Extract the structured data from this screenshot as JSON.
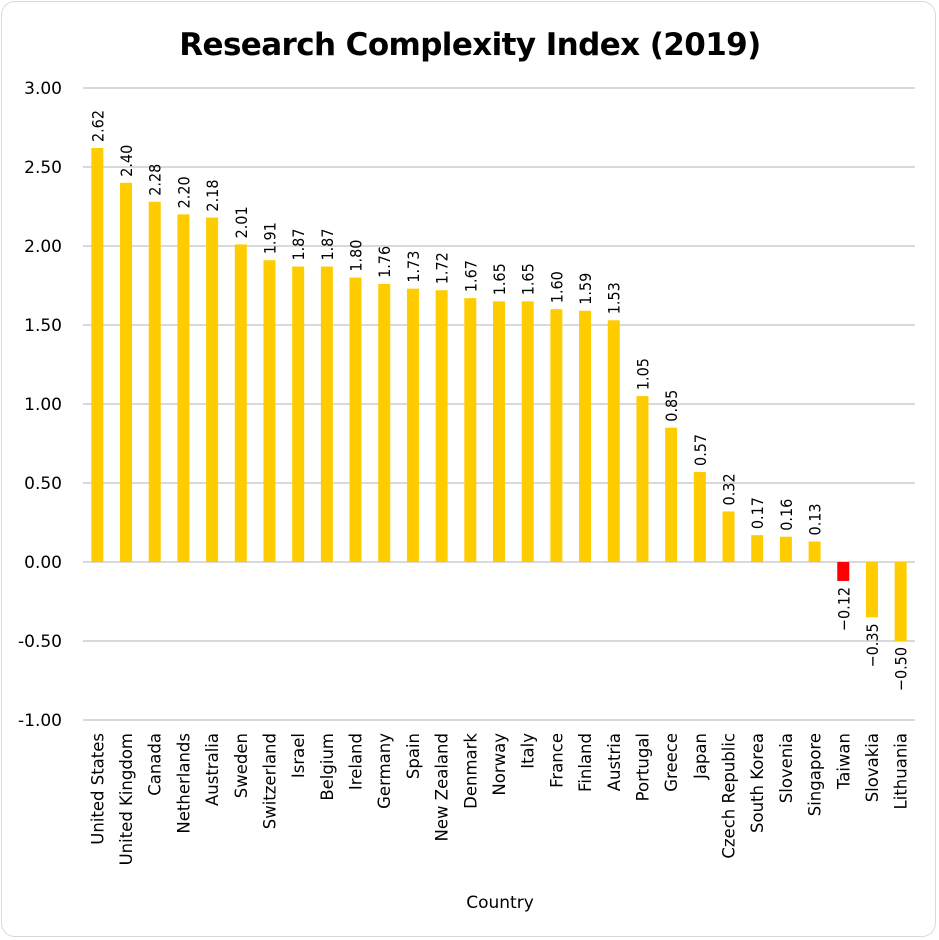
{
  "chart_data": {
    "type": "bar",
    "title": "Research Complexity Index (2019)",
    "xlabel": "Country",
    "ylabel": "",
    "ylim": [
      -1.0,
      3.0
    ],
    "yticks": [
      "3.00",
      "2.50",
      "2.00",
      "1.50",
      "1.00",
      "0.50",
      "0.00",
      "-0.50",
      "-1.00"
    ],
    "ytick_values": [
      3.0,
      2.5,
      2.0,
      1.5,
      1.0,
      0.5,
      0.0,
      -0.5,
      -1.0
    ],
    "grid": true,
    "legend": "none",
    "colors": {
      "default": "#FFCC00",
      "highlight": "#FF0000"
    },
    "highlight_category": "Taiwan",
    "categories": [
      "United States",
      "United Kingdom",
      "Canada",
      "Netherlands",
      "Australia",
      "Sweden",
      "Switzerland",
      "Israel",
      "Belgium",
      "Ireland",
      "Germany",
      "Spain",
      "New Zealand",
      "Denmark",
      "Norway",
      "Italy",
      "France",
      "Finland",
      "Austria",
      "Portugal",
      "Greece",
      "Japan",
      "Czech Republic",
      "South Korea",
      "Slovenia",
      "Singapore",
      "Taiwan",
      "Slovakia",
      "Lithuania"
    ],
    "values": [
      2.62,
      2.4,
      2.28,
      2.2,
      2.18,
      2.01,
      1.91,
      1.87,
      1.87,
      1.8,
      1.76,
      1.73,
      1.72,
      1.67,
      1.65,
      1.65,
      1.6,
      1.59,
      1.53,
      1.05,
      0.85,
      0.57,
      0.32,
      0.17,
      0.16,
      0.13,
      -0.12,
      -0.35,
      -0.5
    ],
    "data_labels": [
      "2.62",
      "2.40",
      "2.28",
      "2.20",
      "2.18",
      "2.01",
      "1.91",
      "1.87",
      "1.87",
      "1.80",
      "1.76",
      "1.73",
      "1.72",
      "1.67",
      "1.65",
      "1.65",
      "1.60",
      "1.59",
      "1.53",
      "1.05",
      "0.85",
      "0.57",
      "0.32",
      "0.17",
      "0.16",
      "0.13",
      "−0.12",
      "−0.35",
      "−0.50"
    ]
  }
}
